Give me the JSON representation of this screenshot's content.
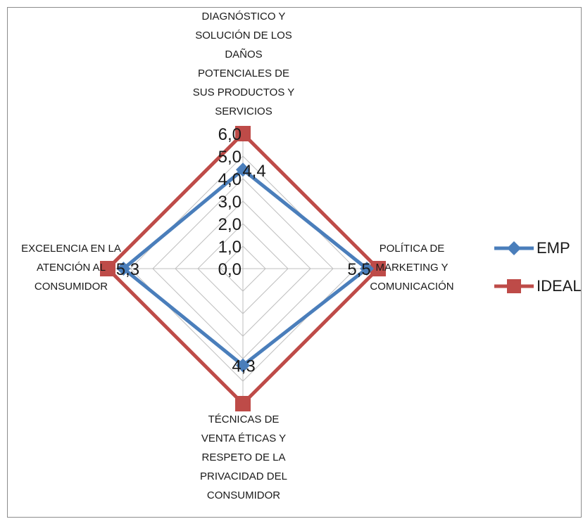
{
  "chart_data": {
    "type": "radar",
    "axes": [
      "DIAGNÓSTICO Y\nSOLUCIÓN DE LOS\nDAÑOS\nPOTENCIALES DE\nSUS PRODUCTOS Y\nSERVICIOS",
      "POLÍTICA DE\nMARKETING Y\nCOMUNICACIÓN",
      "TÉCNICAS DE\nVENTA ÉTICAS Y\nRESPETO DE LA\nPRIVACIDAD DEL\nCONSUMIDOR",
      "EXCELENCIA EN LA\nATENCIÓN AL\nCONSUMIDOR"
    ],
    "tick_labels": [
      "0,0",
      "1,0",
      "2,0",
      "3,0",
      "4,0",
      "5,0",
      "6,0"
    ],
    "rmax": 6,
    "series": [
      {
        "name": "EMP",
        "values": [
          4.4,
          5.5,
          4.3,
          5.3
        ],
        "labels": [
          "4,4",
          "5,5",
          "4,3",
          "5,3"
        ],
        "color": "#4a7ebb",
        "marker": "diamond"
      },
      {
        "name": "IDEAL",
        "values": [
          6.0,
          6.0,
          6.0,
          6.0
        ],
        "color": "#be4b48",
        "marker": "square"
      }
    ],
    "legend_position": "right",
    "grid": true
  }
}
